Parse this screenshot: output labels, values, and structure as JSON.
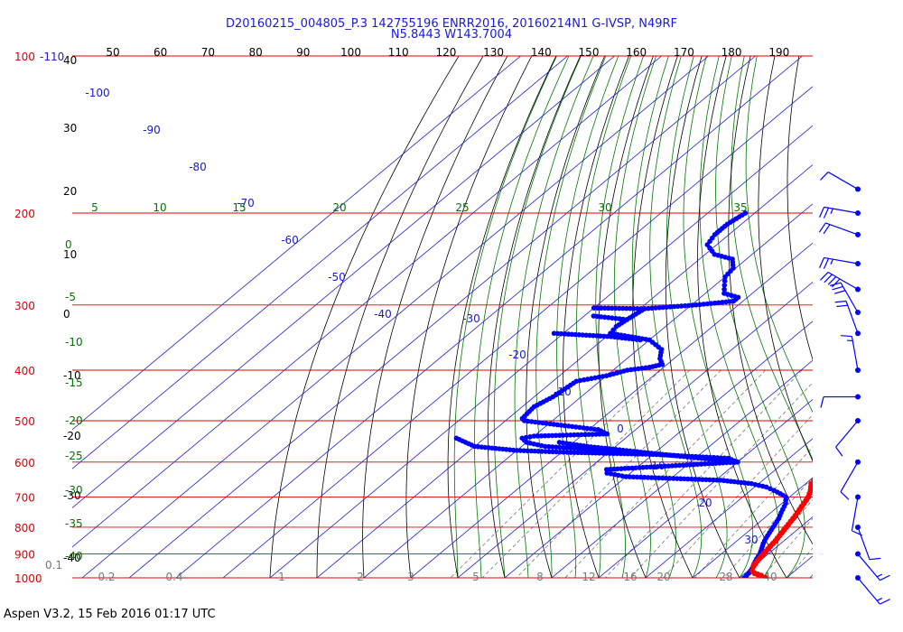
{
  "header": {
    "title_line1": "D20160215_004805_P.3 142755196 ENRR2016, 20160214N1 G-IVSP, N49RF",
    "title_line2": "N5.8443 W143.7004"
  },
  "footer": {
    "text": "Aspen V3.2, 15 Feb 2016  01:17 UTC"
  },
  "chart_data": {
    "type": "skew-t",
    "colors": {
      "isobar": "#dd0000",
      "isotherm": "#1a1ad0",
      "temperature": "#ff0000",
      "dewpoint": "#0000ff",
      "dry_adiabat": "#000000",
      "moist_adiabat": "#007700",
      "mixing_ratio": "#777777"
    },
    "pressure_labels": [
      "100",
      "200",
      "300",
      "400",
      "500",
      "600",
      "700",
      "800",
      "900",
      "1000"
    ],
    "corner_labels": {
      "isotherm_minus110": "-110",
      "mixing_ratio_0_1": "0.1"
    },
    "top_temperature_ticks": [
      "50",
      "60",
      "70",
      "80",
      "90",
      "100",
      "110",
      "120",
      "130",
      "140",
      "150",
      "160",
      "170",
      "180",
      "190"
    ],
    "dry_adiabat_labels": [
      "40",
      "30",
      "20",
      "10",
      "0",
      "-10",
      "-20",
      "-30",
      "-40"
    ],
    "moist_adiabat_labels": [
      "0",
      "-5",
      "-10",
      "-15",
      "-20",
      "-25",
      "-30",
      "-35",
      "-40"
    ],
    "moist_adiabat_top_labels": [
      "5",
      "10",
      "15",
      "20",
      "25",
      "30",
      "35"
    ],
    "isotherm_labels": [
      "-100",
      "-90",
      "-80",
      "-70",
      "-60",
      "-50",
      "-40",
      "-30",
      "-20",
      "-10",
      "0",
      "10",
      "20",
      "30"
    ],
    "bottom_temperature_labels": [
      "40"
    ],
    "mixing_ratio_labels": [
      "0.2",
      "0.4",
      "1",
      "2",
      "3",
      "5",
      "8",
      "12",
      "16",
      "20",
      "28"
    ],
    "temperature_profile": [
      [
        1000,
        25.5
      ],
      [
        990,
        24
      ],
      [
        980,
        22
      ],
      [
        970,
        21
      ],
      [
        950,
        20
      ],
      [
        930,
        19.5
      ],
      [
        900,
        19
      ],
      [
        870,
        18.5
      ],
      [
        850,
        18.2
      ],
      [
        800,
        17
      ],
      [
        760,
        16
      ],
      [
        730,
        15
      ],
      [
        700,
        14
      ],
      [
        680,
        12.8
      ],
      [
        660,
        11.2
      ],
      [
        640,
        10.6
      ],
      [
        620,
        9.2
      ],
      [
        600,
        8.3
      ],
      [
        580,
        6.8
      ],
      [
        560,
        4.8
      ],
      [
        545,
        3.2
      ],
      [
        530,
        0.9
      ],
      [
        510,
        0.4
      ],
      [
        495,
        -0.6
      ],
      [
        470,
        -3
      ],
      [
        450,
        -4.5
      ],
      [
        420,
        -7
      ],
      [
        400,
        -8.5
      ],
      [
        380,
        -11
      ],
      [
        360,
        -13.5
      ],
      [
        330,
        -16
      ],
      [
        300,
        -19.5
      ],
      [
        280,
        -23
      ],
      [
        260,
        -27
      ],
      [
        240,
        -32
      ],
      [
        220,
        -37
      ],
      [
        200,
        -43
      ],
      [
        190,
        -46.5
      ],
      [
        180,
        -50.5
      ]
    ],
    "temperature_isolated_point": [
      158,
      -60
    ],
    "dewpoint_profile": [
      [
        1000,
        21
      ],
      [
        980,
        20.8
      ],
      [
        960,
        20.3
      ],
      [
        940,
        19.5
      ],
      [
        920,
        18.8
      ],
      [
        900,
        18.2
      ],
      [
        880,
        17.3
      ],
      [
        860,
        16.3
      ],
      [
        840,
        15.5
      ],
      [
        800,
        14.2
      ],
      [
        770,
        13.2
      ],
      [
        750,
        12.2
      ],
      [
        720,
        10.8
      ],
      [
        700,
        9.2
      ],
      [
        690,
        7.2
      ],
      [
        680,
        5
      ],
      [
        670,
        2.5
      ],
      [
        660,
        -1.5
      ],
      [
        650,
        -9
      ],
      [
        640,
        -30
      ],
      [
        630,
        -35
      ],
      [
        620,
        -36
      ],
      [
        600,
        -10
      ],
      [
        590,
        -13
      ],
      [
        580,
        -30
      ],
      [
        570,
        -40
      ],
      [
        560,
        -55
      ],
      [
        550,
        -60
      ],
      [
        540,
        -62
      ],
      [
        535,
        -60
      ],
      [
        530,
        -45
      ],
      [
        520,
        -48
      ],
      [
        510,
        -57
      ],
      [
        500,
        -66
      ],
      [
        495,
        -67
      ],
      [
        470,
        -67.5
      ],
      [
        450,
        -66
      ],
      [
        420,
        -65
      ],
      [
        410,
        -60
      ],
      [
        400,
        -57
      ],
      [
        395,
        -53
      ],
      [
        390,
        -51
      ],
      [
        380,
        -53
      ],
      [
        365,
        -55
      ],
      [
        350,
        -60
      ],
      [
        340,
        -70
      ],
      [
        330,
        -70.5
      ],
      [
        320,
        -70
      ],
      [
        305,
        -69
      ],
      [
        300,
        -59
      ],
      [
        295,
        -52
      ],
      [
        290,
        -52
      ],
      [
        285,
        -56
      ],
      [
        280,
        -57
      ],
      [
        275,
        -58
      ],
      [
        265,
        -60
      ],
      [
        255,
        -60.5
      ],
      [
        245,
        -63
      ],
      [
        240,
        -68
      ],
      [
        230,
        -72
      ],
      [
        220,
        -73
      ],
      [
        210,
        -73
      ],
      [
        200,
        -72
      ]
    ],
    "dewpoint_side_branches": [
      [
        [
          600,
          -10
        ],
        [
          580,
          -28
        ],
        [
          560,
          -46
        ],
        [
          550,
          -53
        ]
      ],
      [
        [
          580,
          -30
        ],
        [
          575,
          -48
        ],
        [
          570,
          -60
        ],
        [
          560,
          -70
        ],
        [
          540,
          -76
        ]
      ],
      [
        [
          350,
          -62
        ],
        [
          345,
          -69
        ],
        [
          340,
          -82
        ]
      ],
      [
        [
          320,
          -70
        ],
        [
          315,
          -78
        ]
      ],
      [
        [
          305,
          -69
        ],
        [
          304,
          -80
        ]
      ]
    ],
    "wind_barbs": [
      {
        "pressure": 180,
        "speed_kt": 10,
        "direction": 300
      },
      {
        "pressure": 200,
        "speed_kt": 25,
        "direction": 280
      },
      {
        "pressure": 220,
        "speed_kt": 20,
        "direction": 290
      },
      {
        "pressure": 250,
        "speed_kt": 25,
        "direction": 280
      },
      {
        "pressure": 280,
        "speed_kt": 40,
        "direction": 300
      },
      {
        "pressure": 310,
        "speed_kt": 30,
        "direction": 330
      },
      {
        "pressure": 340,
        "speed_kt": 20,
        "direction": 340
      },
      {
        "pressure": 400,
        "speed_kt": 15,
        "direction": 350
      },
      {
        "pressure": 450,
        "speed_kt": 10,
        "direction": 270
      },
      {
        "pressure": 500,
        "speed_kt": 10,
        "direction": 220
      },
      {
        "pressure": 600,
        "speed_kt": 10,
        "direction": 210
      },
      {
        "pressure": 700,
        "speed_kt": 10,
        "direction": 190
      },
      {
        "pressure": 800,
        "speed_kt": 10,
        "direction": 160
      },
      {
        "pressure": 900,
        "speed_kt": 15,
        "direction": 140
      },
      {
        "pressure": 1000,
        "speed_kt": 15,
        "direction": 140
      }
    ]
  }
}
